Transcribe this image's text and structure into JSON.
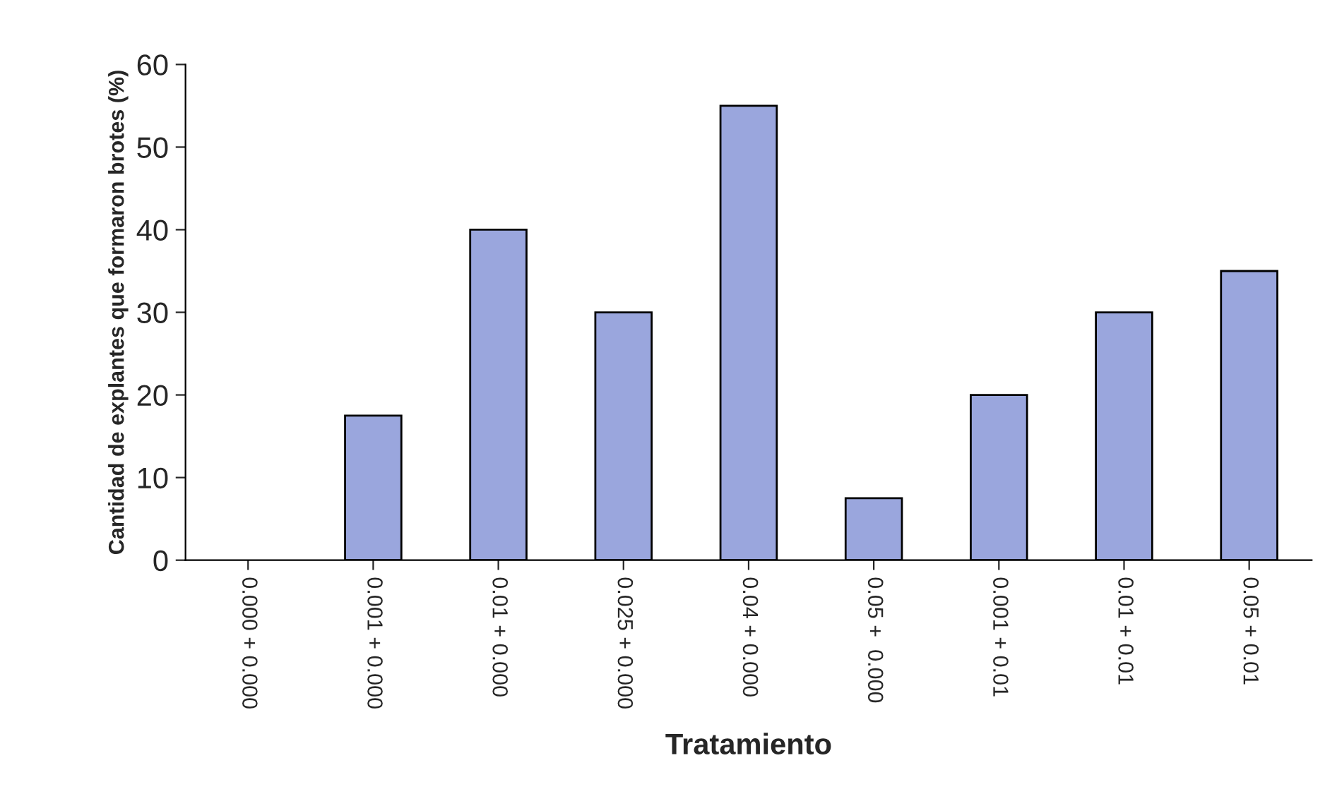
{
  "chart_data": {
    "type": "bar",
    "xlabel": "Tratamiento",
    "ylabel": "Cantidad de explantes que formaron brotes (%)",
    "categories": [
      "0.000 + 0.000",
      "0.001 + 0.000",
      "0.01 + 0.000",
      "0.025 + 0.000",
      "0.04 + 0.000",
      "0.05 +  0.000",
      "0.001 + 0.01",
      "0.01 + 0.01",
      "0.05 + 0.01"
    ],
    "values": [
      0,
      17.5,
      40,
      30,
      55,
      7.5,
      20,
      30,
      35
    ],
    "color": "#9aa6dd",
    "ylim": [
      0,
      60
    ],
    "yticks": [
      0,
      10,
      20,
      30,
      40,
      50,
      60
    ],
    "grid": false,
    "legend": false
  }
}
